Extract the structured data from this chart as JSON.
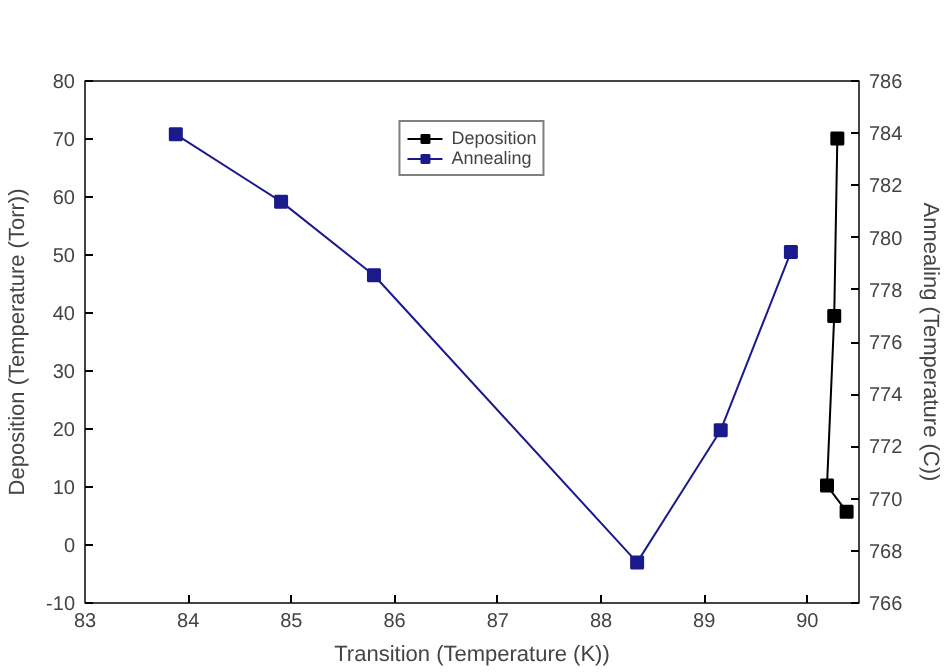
{
  "chart_data": {
    "type": "line",
    "xlabel": "Transition (Temperature (K))",
    "ylabel": "Deposition (Temperature (Torr))",
    "y2label": "Annealing (Temperature (C))",
    "xlim": [
      83,
      90.5
    ],
    "xticks": [
      83,
      84,
      85,
      86,
      87,
      88,
      89,
      90
    ],
    "ylim": [
      -10,
      80
    ],
    "yticks": [
      -10,
      0,
      10,
      20,
      30,
      40,
      50,
      60,
      70,
      80
    ],
    "y2lim": [
      766,
      786
    ],
    "y2ticks": [
      766,
      768,
      770,
      772,
      774,
      776,
      778,
      780,
      782,
      784,
      786
    ],
    "series": [
      {
        "name": "Deposition",
        "color": "#000000",
        "axis": "y2",
        "x": [
          90.29,
          90.26,
          90.19,
          90.38
        ],
        "values": [
          783.8,
          777,
          770.5,
          769.5
        ]
      },
      {
        "name": "Annealing",
        "color": "#1a1a8c",
        "x": [
          83.88,
          84.9,
          85.8,
          88.35,
          89.16,
          89.84
        ],
        "values": [
          70.8,
          59.2,
          46.5,
          -3,
          19.8,
          50.5
        ]
      }
    ],
    "marker": "square",
    "line_style": "solid",
    "legend": "top",
    "grid": false
  }
}
